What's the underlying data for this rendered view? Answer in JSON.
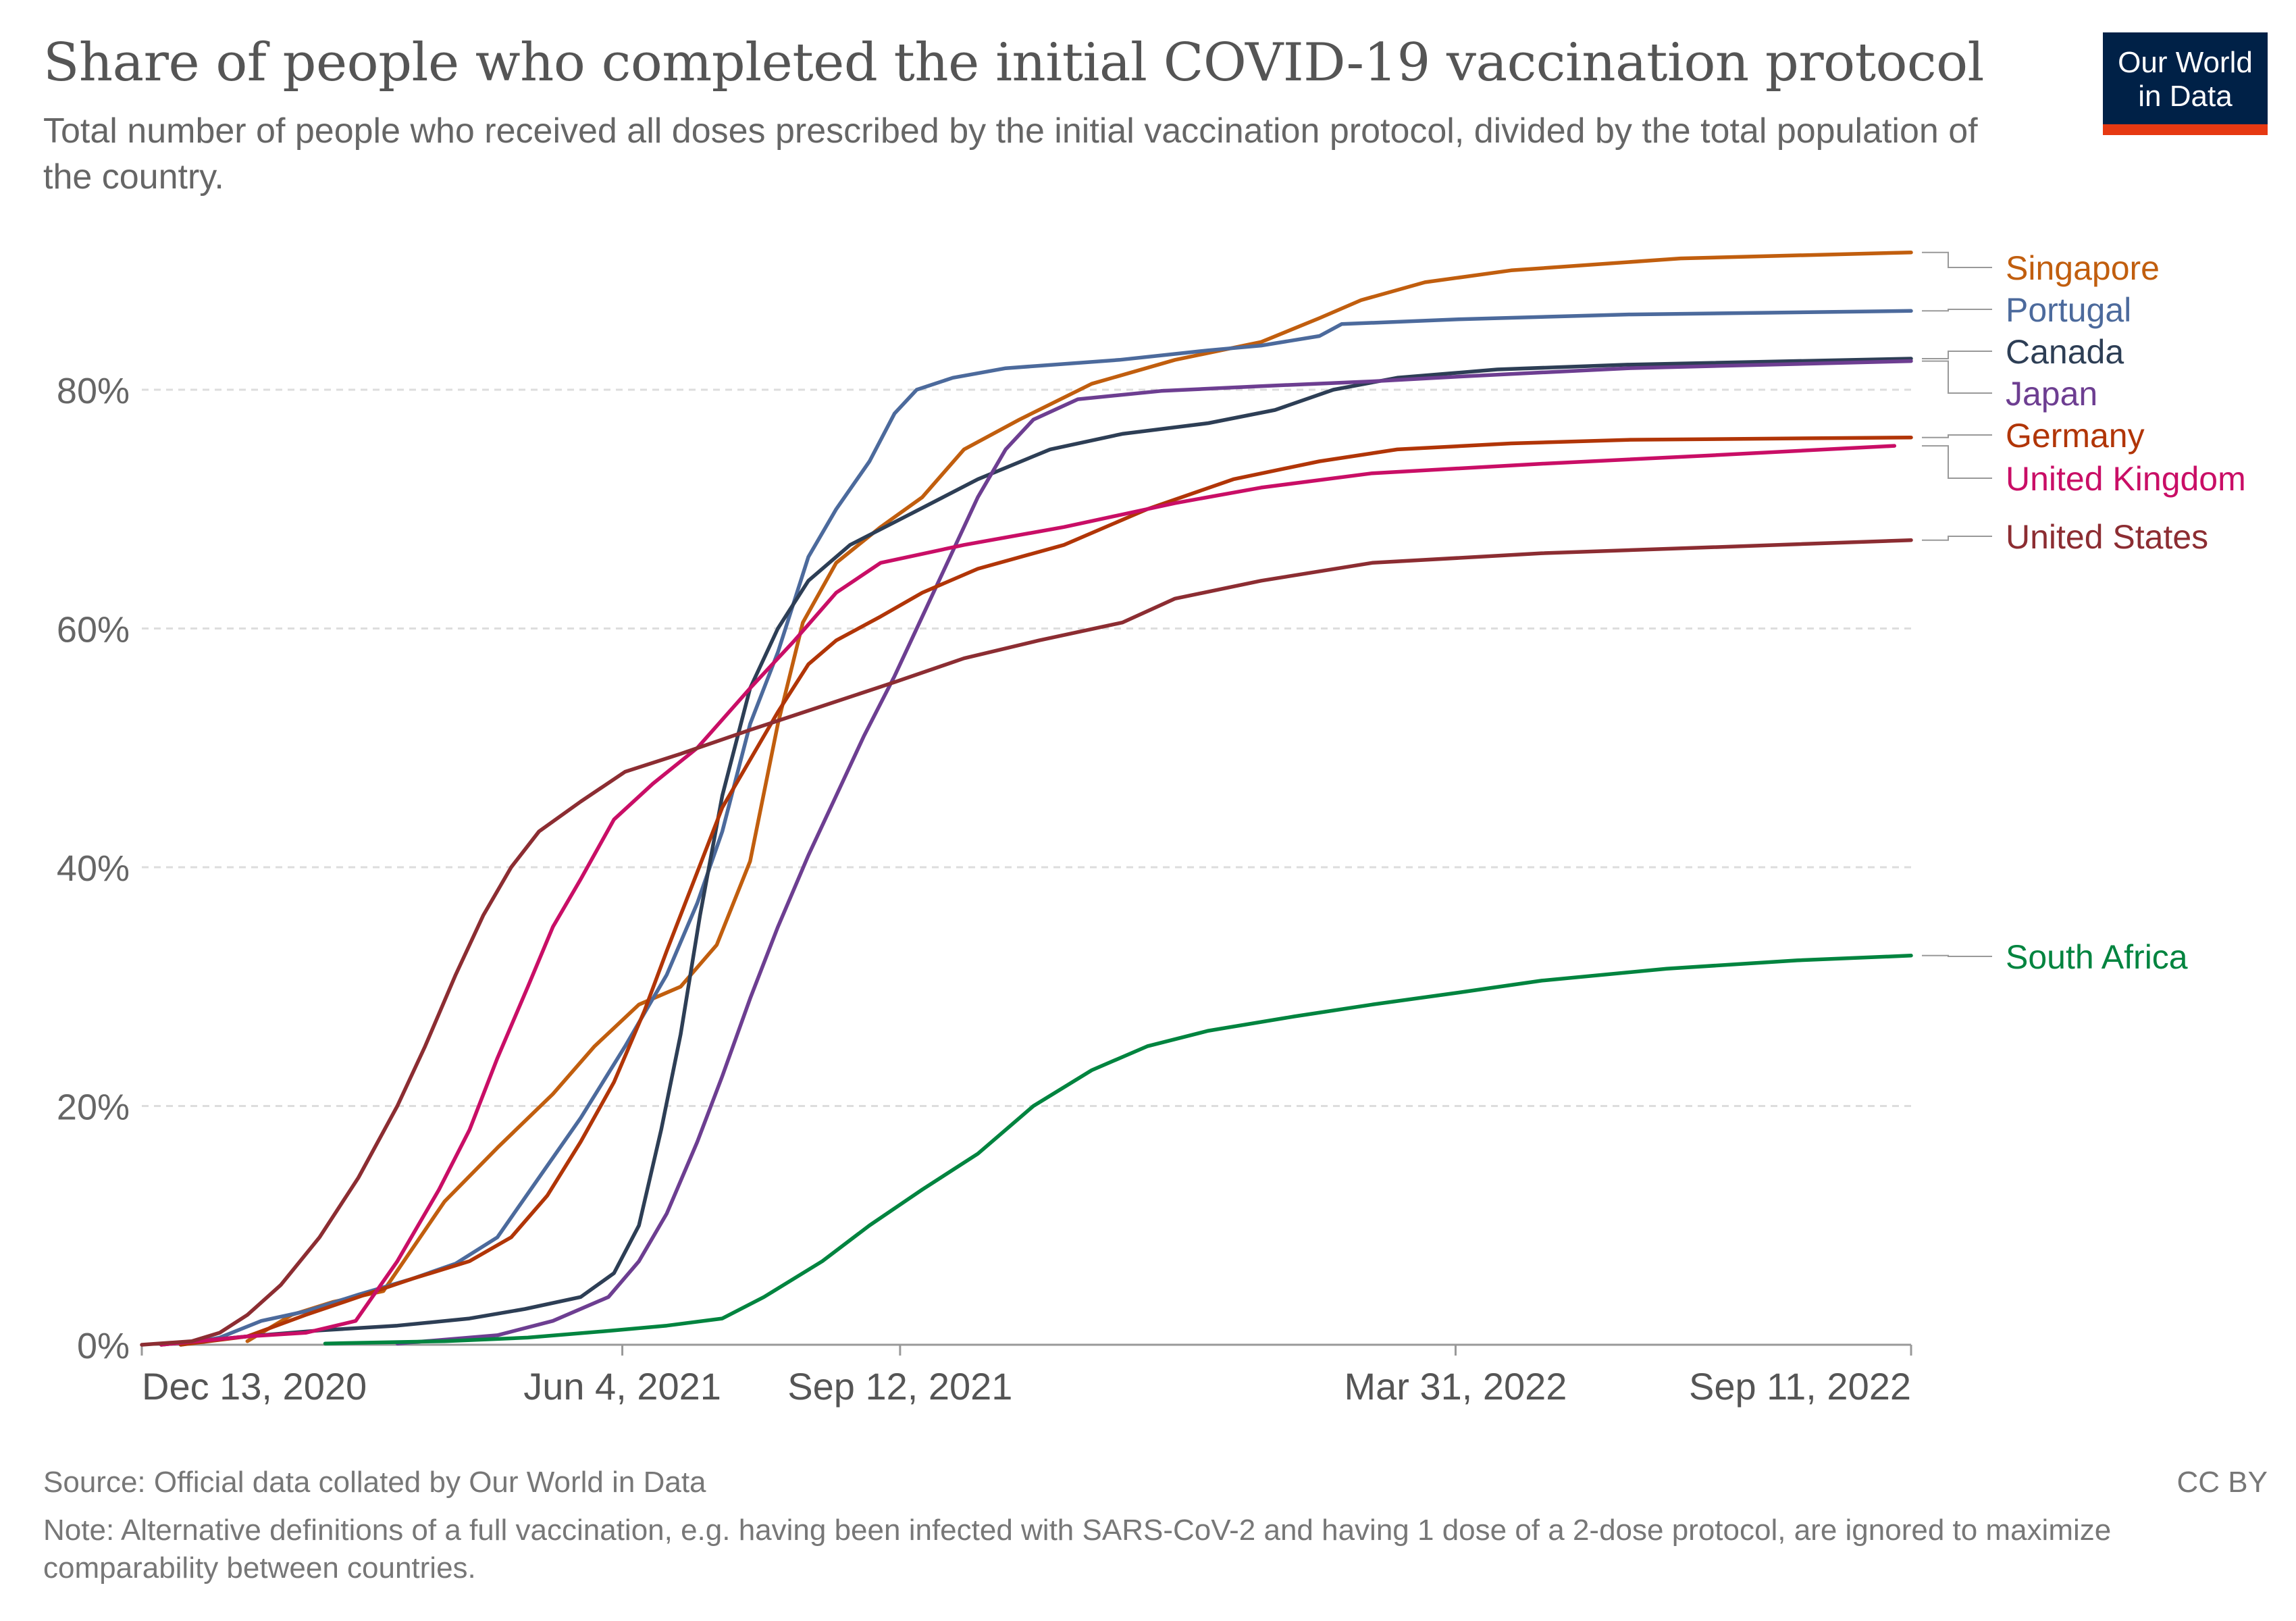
{
  "header": {
    "title": "Share of people who completed the initial COVID-19 vaccination protocol",
    "subtitle": "Total number of people who received all doses prescribed by the initial vaccination protocol, divided by the total population of the country."
  },
  "logo": {
    "text": "Our World in Data",
    "bar_color": "#e63912",
    "bg_color": "#002147"
  },
  "footer": {
    "source": "Source: Official data collated by Our World in Data",
    "license": "CC BY",
    "note": "Note: Alternative definitions of a full vaccination, e.g. having been infected with SARS-CoV-2 and having 1 dose of a 2-dose protocol, are ignored to maximize comparability between countries."
  },
  "chart_data": {
    "type": "line",
    "title": "Share of people who completed the initial COVID-19 vaccination protocol",
    "xlabel": "",
    "ylabel": "",
    "x_type": "date",
    "xlim": [
      "2020-12-13",
      "2022-09-11"
    ],
    "ylim": [
      0,
      92
    ],
    "y_ticks": [
      0,
      20,
      40,
      60,
      80
    ],
    "y_tick_labels": [
      "0%",
      "20%",
      "40%",
      "60%",
      "80%"
    ],
    "x_ticks": [
      "2020-12-13",
      "2021-06-04",
      "2021-09-12",
      "2022-03-31",
      "2022-09-11"
    ],
    "x_tick_labels": [
      "Dec 13, 2020",
      "Jun 4, 2021",
      "Sep 12, 2021",
      "Mar 31, 2022",
      "Sep 11, 2022"
    ],
    "grid": "horizontal dashed",
    "legend": "right-end labels",
    "series": [
      {
        "name": "Singapore",
        "color": "#c15e0e",
        "points": [
          [
            "2021-01-20",
            0.3
          ],
          [
            "2021-02-05",
            2.5
          ],
          [
            "2021-02-20",
            3.6
          ],
          [
            "2021-03-10",
            4.5
          ],
          [
            "2021-04-01",
            12.0
          ],
          [
            "2021-04-20",
            16.5
          ],
          [
            "2021-05-10",
            21.0
          ],
          [
            "2021-05-25",
            25.0
          ],
          [
            "2021-06-10",
            28.5
          ],
          [
            "2021-06-25",
            30.0
          ],
          [
            "2021-07-08",
            33.5
          ],
          [
            "2021-07-20",
            40.5
          ],
          [
            "2021-07-30",
            52.0
          ],
          [
            "2021-08-08",
            60.5
          ],
          [
            "2021-08-20",
            65.5
          ],
          [
            "2021-09-05",
            68.5
          ],
          [
            "2021-09-20",
            71.0
          ],
          [
            "2021-10-05",
            75.0
          ],
          [
            "2021-10-25",
            77.5
          ],
          [
            "2021-11-20",
            80.5
          ],
          [
            "2021-12-20",
            82.5
          ],
          [
            "2022-01-20",
            84.0
          ],
          [
            "2022-02-10",
            86.0
          ],
          [
            "2022-02-25",
            87.5
          ],
          [
            "2022-03-20",
            89.0
          ],
          [
            "2022-04-20",
            90.0
          ],
          [
            "2022-06-20",
            91.0
          ],
          [
            "2022-09-11",
            91.5
          ]
        ]
      },
      {
        "name": "Portugal",
        "color": "#4c6a9c",
        "points": [
          [
            "2020-12-27",
            0.0
          ],
          [
            "2021-01-10",
            0.6
          ],
          [
            "2021-01-25",
            2.0
          ],
          [
            "2021-02-10",
            2.8
          ],
          [
            "2021-03-01",
            4.2
          ],
          [
            "2021-03-20",
            5.5
          ],
          [
            "2021-04-05",
            6.8
          ],
          [
            "2021-04-20",
            9.0
          ],
          [
            "2021-05-05",
            14.0
          ],
          [
            "2021-05-20",
            19.0
          ],
          [
            "2021-06-05",
            25.0
          ],
          [
            "2021-06-20",
            31.0
          ],
          [
            "2021-07-01",
            37.0
          ],
          [
            "2021-07-10",
            43.0
          ],
          [
            "2021-07-20",
            52.0
          ],
          [
            "2021-07-30",
            58.0
          ],
          [
            "2021-08-10",
            66.0
          ],
          [
            "2021-08-20",
            70.0
          ],
          [
            "2021-09-01",
            74.0
          ],
          [
            "2021-09-10",
            78.0
          ],
          [
            "2021-09-18",
            80.0
          ],
          [
            "2021-10-01",
            81.0
          ],
          [
            "2021-10-20",
            81.8
          ],
          [
            "2021-11-30",
            82.5
          ],
          [
            "2022-01-01",
            83.3
          ],
          [
            "2022-01-20",
            83.7
          ],
          [
            "2022-02-10",
            84.5
          ],
          [
            "2022-02-18",
            85.5
          ],
          [
            "2022-04-01",
            85.9
          ],
          [
            "2022-06-01",
            86.3
          ],
          [
            "2022-09-11",
            86.6
          ]
        ]
      },
      {
        "name": "Canada",
        "color": "#2d3e55",
        "points": [
          [
            "2020-12-20",
            0.0
          ],
          [
            "2021-01-20",
            0.7
          ],
          [
            "2021-02-15",
            1.2
          ],
          [
            "2021-03-15",
            1.6
          ],
          [
            "2021-04-10",
            2.2
          ],
          [
            "2021-04-30",
            3.0
          ],
          [
            "2021-05-20",
            4.0
          ],
          [
            "2021-06-01",
            6.0
          ],
          [
            "2021-06-10",
            10.0
          ],
          [
            "2021-06-18",
            18.0
          ],
          [
            "2021-06-25",
            26.0
          ],
          [
            "2021-07-02",
            36.0
          ],
          [
            "2021-07-10",
            46.0
          ],
          [
            "2021-07-20",
            55.0
          ],
          [
            "2021-07-30",
            60.0
          ],
          [
            "2021-08-10",
            64.0
          ],
          [
            "2021-08-25",
            67.0
          ],
          [
            "2021-09-15",
            69.5
          ],
          [
            "2021-10-10",
            72.5
          ],
          [
            "2021-11-05",
            75.0
          ],
          [
            "2021-12-01",
            76.3
          ],
          [
            "2022-01-01",
            77.2
          ],
          [
            "2022-01-25",
            78.3
          ],
          [
            "2022-02-15",
            80.0
          ],
          [
            "2022-03-10",
            81.0
          ],
          [
            "2022-04-15",
            81.7
          ],
          [
            "2022-06-01",
            82.1
          ],
          [
            "2022-09-11",
            82.6
          ]
        ]
      },
      {
        "name": "Japan",
        "color": "#6d3e91",
        "points": [
          [
            "2021-03-15",
            0.1
          ],
          [
            "2021-04-20",
            0.8
          ],
          [
            "2021-05-10",
            2.0
          ],
          [
            "2021-05-30",
            4.0
          ],
          [
            "2021-06-10",
            7.0
          ],
          [
            "2021-06-20",
            11.0
          ],
          [
            "2021-07-01",
            17.0
          ],
          [
            "2021-07-10",
            22.5
          ],
          [
            "2021-07-20",
            29.0
          ],
          [
            "2021-07-30",
            35.0
          ],
          [
            "2021-08-10",
            41.0
          ],
          [
            "2021-08-20",
            46.0
          ],
          [
            "2021-08-30",
            51.0
          ],
          [
            "2021-09-10",
            56.0
          ],
          [
            "2021-09-20",
            61.0
          ],
          [
            "2021-09-30",
            66.0
          ],
          [
            "2021-10-10",
            71.0
          ],
          [
            "2021-10-20",
            75.0
          ],
          [
            "2021-10-30",
            77.5
          ],
          [
            "2021-11-15",
            79.2
          ],
          [
            "2021-12-15",
            79.9
          ],
          [
            "2022-01-20",
            80.3
          ],
          [
            "2022-03-01",
            80.7
          ],
          [
            "2022-04-01",
            81.1
          ],
          [
            "2022-06-01",
            81.8
          ],
          [
            "2022-09-11",
            82.4
          ]
        ]
      },
      {
        "name": "Germany",
        "color": "#b13507",
        "points": [
          [
            "2020-12-27",
            0.0
          ],
          [
            "2021-01-20",
            0.7
          ],
          [
            "2021-02-10",
            2.5
          ],
          [
            "2021-03-01",
            4.0
          ],
          [
            "2021-03-20",
            5.5
          ],
          [
            "2021-04-10",
            7.0
          ],
          [
            "2021-04-25",
            9.0
          ],
          [
            "2021-05-08",
            12.5
          ],
          [
            "2021-05-20",
            17.0
          ],
          [
            "2021-06-01",
            22.0
          ],
          [
            "2021-06-12",
            28.0
          ],
          [
            "2021-06-20",
            33.0
          ],
          [
            "2021-06-30",
            39.0
          ],
          [
            "2021-07-10",
            45.0
          ],
          [
            "2021-07-20",
            49.0
          ],
          [
            "2021-07-30",
            53.0
          ],
          [
            "2021-08-10",
            57.0
          ],
          [
            "2021-08-20",
            59.0
          ],
          [
            "2021-09-05",
            61.0
          ],
          [
            "2021-09-20",
            63.0
          ],
          [
            "2021-10-10",
            65.0
          ],
          [
            "2021-11-10",
            67.0
          ],
          [
            "2021-12-10",
            70.0
          ],
          [
            "2022-01-10",
            72.5
          ],
          [
            "2022-02-10",
            74.0
          ],
          [
            "2022-03-10",
            75.0
          ],
          [
            "2022-04-20",
            75.5
          ],
          [
            "2022-06-01",
            75.8
          ],
          [
            "2022-09-11",
            76.0
          ]
        ]
      },
      {
        "name": "United Kingdom",
        "color": "#c90e66",
        "points": [
          [
            "2020-12-20",
            0.0
          ],
          [
            "2021-01-20",
            0.7
          ],
          [
            "2021-02-10",
            1.0
          ],
          [
            "2021-02-28",
            2.0
          ],
          [
            "2021-03-15",
            7.0
          ],
          [
            "2021-03-30",
            13.0
          ],
          [
            "2021-04-10",
            18.0
          ],
          [
            "2021-04-20",
            24.0
          ],
          [
            "2021-05-01",
            30.0
          ],
          [
            "2021-05-10",
            35.0
          ],
          [
            "2021-05-20",
            39.0
          ],
          [
            "2021-06-01",
            44.0
          ],
          [
            "2021-06-15",
            47.0
          ],
          [
            "2021-07-01",
            50.0
          ],
          [
            "2021-07-20",
            55.0
          ],
          [
            "2021-08-05",
            59.0
          ],
          [
            "2021-08-20",
            63.0
          ],
          [
            "2021-09-05",
            65.5
          ],
          [
            "2021-10-05",
            67.0
          ],
          [
            "2021-11-10",
            68.5
          ],
          [
            "2021-12-20",
            70.5
          ],
          [
            "2022-01-20",
            71.8
          ],
          [
            "2022-03-01",
            73.0
          ],
          [
            "2022-05-01",
            73.8
          ],
          [
            "2022-07-01",
            74.5
          ],
          [
            "2022-09-05",
            75.3
          ]
        ]
      },
      {
        "name": "United States",
        "color": "#8c2d32",
        "points": [
          [
            "2020-12-13",
            0.0
          ],
          [
            "2020-12-31",
            0.3
          ],
          [
            "2021-01-10",
            1.0
          ],
          [
            "2021-01-20",
            2.5
          ],
          [
            "2021-02-01",
            5.0
          ],
          [
            "2021-02-15",
            9.0
          ],
          [
            "2021-03-01",
            14.0
          ],
          [
            "2021-03-15",
            20.0
          ],
          [
            "2021-03-25",
            25.0
          ],
          [
            "2021-04-05",
            31.0
          ],
          [
            "2021-04-15",
            36.0
          ],
          [
            "2021-04-25",
            40.0
          ],
          [
            "2021-05-05",
            43.0
          ],
          [
            "2021-05-20",
            45.5
          ],
          [
            "2021-06-05",
            48.0
          ],
          [
            "2021-06-25",
            49.5
          ],
          [
            "2021-07-20",
            51.5
          ],
          [
            "2021-08-15",
            53.5
          ],
          [
            "2021-09-10",
            55.5
          ],
          [
            "2021-10-05",
            57.5
          ],
          [
            "2021-11-01",
            59.0
          ],
          [
            "2021-12-01",
            60.5
          ],
          [
            "2021-12-20",
            62.5
          ],
          [
            "2022-01-20",
            64.0
          ],
          [
            "2022-03-01",
            65.5
          ],
          [
            "2022-05-01",
            66.3
          ],
          [
            "2022-07-01",
            66.8
          ],
          [
            "2022-09-11",
            67.4
          ]
        ]
      },
      {
        "name": "South Africa",
        "color": "#00843f",
        "points": [
          [
            "2021-02-17",
            0.1
          ],
          [
            "2021-04-01",
            0.3
          ],
          [
            "2021-05-01",
            0.6
          ],
          [
            "2021-06-01",
            1.2
          ],
          [
            "2021-06-20",
            1.6
          ],
          [
            "2021-07-10",
            2.2
          ],
          [
            "2021-07-25",
            4.0
          ],
          [
            "2021-08-15",
            7.0
          ],
          [
            "2021-09-01",
            10.0
          ],
          [
            "2021-09-20",
            13.0
          ],
          [
            "2021-10-10",
            16.0
          ],
          [
            "2021-10-30",
            20.0
          ],
          [
            "2021-11-20",
            23.0
          ],
          [
            "2021-12-10",
            25.0
          ],
          [
            "2022-01-01",
            26.3
          ],
          [
            "2022-02-01",
            27.5
          ],
          [
            "2022-03-01",
            28.5
          ],
          [
            "2022-04-01",
            29.5
          ],
          [
            "2022-05-01",
            30.5
          ],
          [
            "2022-06-15",
            31.5
          ],
          [
            "2022-08-01",
            32.2
          ],
          [
            "2022-09-11",
            32.6
          ]
        ]
      }
    ],
    "end_labels": [
      {
        "name": "Singapore",
        "color": "#c15e0e"
      },
      {
        "name": "Portugal",
        "color": "#4c6a9c"
      },
      {
        "name": "Canada",
        "color": "#2d3e55"
      },
      {
        "name": "Japan",
        "color": "#6d3e91"
      },
      {
        "name": "Germany",
        "color": "#b13507"
      },
      {
        "name": "United Kingdom",
        "color": "#c90e66"
      },
      {
        "name": "United States",
        "color": "#8c2d32"
      },
      {
        "name": "South Africa",
        "color": "#00843f"
      }
    ]
  }
}
